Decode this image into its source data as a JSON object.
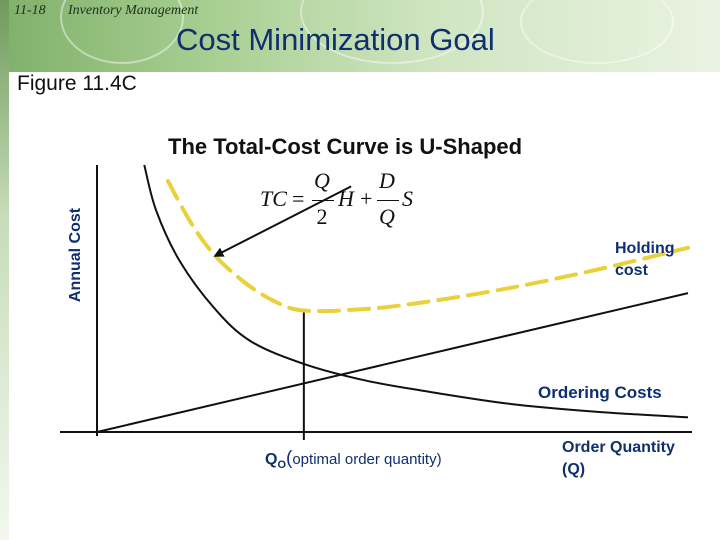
{
  "header": {
    "slide_number": "11-18",
    "topic": "Inventory Management",
    "title": "Cost Minimization Goal"
  },
  "figure_label": "Figure 11.4C",
  "formula": {
    "lhs": "TC",
    "equals": "=",
    "term1_numerator": "Q",
    "term1_denominator": "2",
    "term1_factor": "H",
    "plus": "+",
    "term2_numerator": "D",
    "term2_denominator": "Q",
    "term2_factor": "S"
  },
  "colors": {
    "title_blue": "#0f2f70",
    "total_cost_curve": "#e8d13a",
    "header_green": "#7fb06a",
    "axis_black": "#111111"
  },
  "chart_data": {
    "type": "line",
    "title": "The Total-Cost Curve is U-Shaped",
    "ylabel": "Annual Cost",
    "xlabel": "Order Quantity (Q)",
    "grid": false,
    "xlim": [
      0,
      10
    ],
    "ylim": [
      0,
      10
    ],
    "optimum": {
      "x": 3.5,
      "label_symbol": "Q",
      "label_subscript": "O",
      "label_paren_open": "(",
      "label_text": "optimal order quantity)"
    },
    "series": [
      {
        "name": "Holding cost",
        "style": "solid",
        "color": "#111111",
        "x": [
          0,
          10
        ],
        "y": [
          0,
          5.2
        ]
      },
      {
        "name": "Ordering Costs",
        "style": "solid",
        "color": "#111111",
        "x": [
          0.8,
          1.0,
          1.4,
          2.0,
          2.6,
          3.5,
          4.5,
          5.5,
          7.0,
          8.5,
          10.0
        ],
        "y": [
          10.0,
          8.3,
          6.4,
          4.6,
          3.4,
          2.55,
          1.95,
          1.55,
          1.05,
          0.75,
          0.55
        ]
      },
      {
        "name": "",
        "style": "dashed",
        "color": "#e8d13a",
        "x": [
          1.2,
          1.6,
          2.0,
          2.5,
          3.0,
          3.5,
          4.5,
          5.5,
          7.0,
          8.5,
          10.0
        ],
        "y": [
          9.4,
          7.8,
          6.6,
          5.6,
          4.9,
          4.55,
          4.6,
          4.85,
          5.4,
          6.1,
          6.9
        ]
      }
    ],
    "annotations": [
      {
        "type": "arrow",
        "from": [
          4.3,
          9.2
        ],
        "to": [
          2.0,
          6.6
        ]
      }
    ]
  }
}
